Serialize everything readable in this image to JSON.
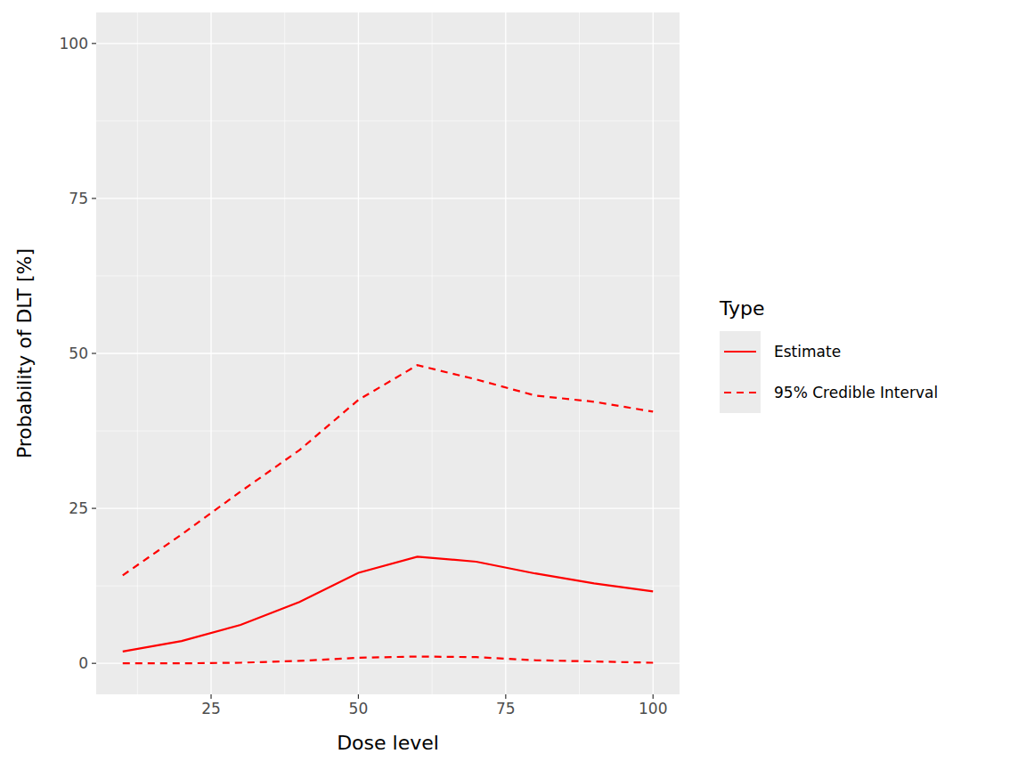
{
  "chart_data": {
    "type": "line",
    "x_label": "Dose level",
    "y_label": "Probability of DLT [%]",
    "legend_title": "Type",
    "x": [
      10,
      20,
      30,
      40,
      50,
      60,
      70,
      80,
      90,
      100
    ],
    "series": [
      {
        "name": "Estimate",
        "color": "#ff0000",
        "line_style": "solid",
        "values": [
          1.9,
          3.6,
          6.2,
          9.9,
          14.6,
          17.2,
          16.4,
          14.5,
          12.9,
          11.6
        ]
      },
      {
        "name": "95% Credible Interval",
        "color": "#ff0000",
        "line_style": "dashed",
        "values": [
          14.2,
          20.8,
          27.7,
          34.4,
          42.5,
          48.1,
          45.8,
          43.2,
          42.2,
          40.6
        ],
        "lower": [
          0.0,
          0.0,
          0.1,
          0.4,
          0.9,
          1.1,
          1.0,
          0.5,
          0.3,
          0.1
        ]
      }
    ],
    "xlim": [
      5.5,
      104.5
    ],
    "ylim": [
      -5,
      105
    ],
    "xticks": [
      25,
      50,
      75,
      100
    ],
    "yticks": [
      0,
      25,
      50,
      75,
      100
    ],
    "grid": true,
    "legend": "right"
  }
}
